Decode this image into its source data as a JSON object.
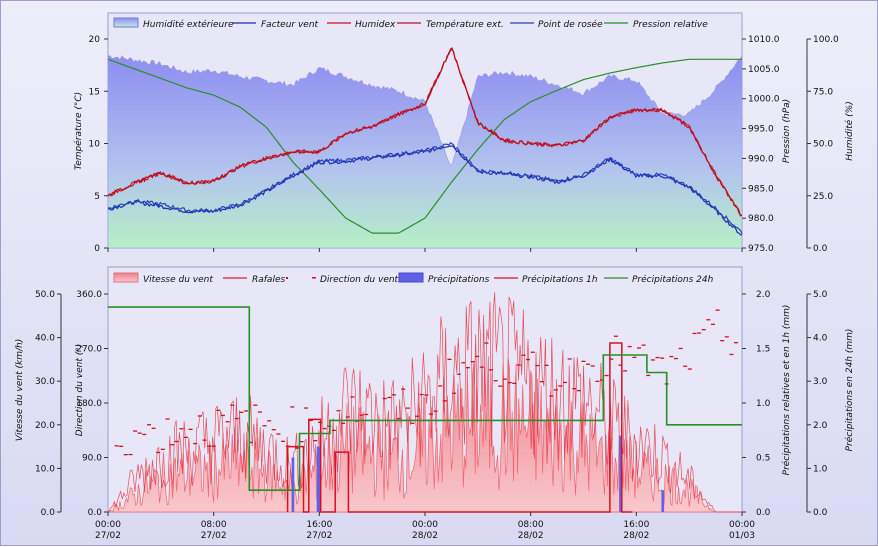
{
  "colors": {
    "humidity": "#8f8ff0",
    "humidity_bottom": "#b6f0c6",
    "windchill": "#1a2fb0",
    "humidex": "#cc1020",
    "temperature": "#b81020",
    "dewpoint": "#2a3fb8",
    "pressure": "#2a8e2a",
    "wind": "#f28c94",
    "gust": "#e01828",
    "direction": "#d01020",
    "rain": "#6060e8",
    "rain1h": "#d81020",
    "rain24h": "#2a8e2a"
  },
  "chart_data": [
    {
      "type": "line",
      "legend": [
        "Humidité extérieure",
        "Facteur vent",
        "Humidex",
        "Température ext.",
        "Point de rosée",
        "Pression relative"
      ],
      "ylabel_left": "Température (°C)",
      "ylabel_right1": "Pression (hPa)",
      "ylabel_right2": "Humidité (%)",
      "ylim_left": [
        0,
        20
      ],
      "ylim_right1": [
        975,
        1010
      ],
      "ylim_right2": [
        0,
        100
      ],
      "yticks_left": [
        "0",
        "5",
        "10",
        "15",
        "20"
      ],
      "yticks_right1": [
        "975.0",
        "980.0",
        "985.0",
        "990.0",
        "995.0",
        "1000.0",
        "1005.0",
        "1010.0"
      ],
      "yticks_right2": [
        "0.0",
        "25.0",
        "50.0",
        "75.0",
        "100.0"
      ],
      "x_hours": [
        0,
        2,
        4,
        6,
        8,
        10,
        12,
        14,
        16,
        18,
        20,
        22,
        24,
        26,
        28,
        30,
        32,
        34,
        36,
        38,
        40,
        42,
        44,
        46,
        48
      ],
      "series": [
        {
          "name": "Humidité extérieure",
          "axis": "right2",
          "values": [
            92,
            90,
            88,
            84,
            85,
            82,
            80,
            78,
            86,
            82,
            78,
            75,
            70,
            38,
            82,
            84,
            82,
            78,
            74,
            82,
            80,
            64,
            64,
            76,
            92
          ]
        },
        {
          "name": "Température ext.",
          "axis": "left",
          "values": [
            5,
            6.2,
            7.2,
            6.2,
            6.4,
            7.8,
            8.6,
            9.2,
            9.2,
            11,
            11.6,
            12.8,
            13.8,
            19.2,
            12,
            10.3,
            10,
            9.8,
            10.3,
            12.5,
            13.2,
            13.2,
            11.6,
            7,
            3
          ]
        },
        {
          "name": "Humidex",
          "axis": "left",
          "values": [
            5,
            6.2,
            7.2,
            6.2,
            6.4,
            7.8,
            8.6,
            9.2,
            9.2,
            11,
            11.6,
            12.8,
            13.8,
            19.2,
            12,
            10.3,
            10,
            9.8,
            10.3,
            12.5,
            13.2,
            13.2,
            11.6,
            7,
            3
          ]
        },
        {
          "name": "Point de rosée",
          "axis": "left",
          "values": [
            3.8,
            4.5,
            4.2,
            3.6,
            3.6,
            4.2,
            5.5,
            7,
            8.3,
            8.4,
            8.7,
            9,
            9.3,
            10,
            7.4,
            7.2,
            6.9,
            6.4,
            7,
            8.6,
            7,
            7,
            5.9,
            3.8,
            1.5
          ]
        },
        {
          "name": "Facteur vent",
          "axis": "left",
          "values": [
            3.7,
            4.4,
            4,
            3.5,
            3.5,
            4.1,
            5.4,
            6.9,
            8.2,
            8.3,
            8.6,
            8.9,
            9.2,
            9.9,
            7.3,
            7.1,
            6.8,
            6.3,
            6.9,
            8.5,
            6.9,
            6.9,
            5.8,
            3.6,
            1.2
          ]
        },
        {
          "name": "Pression relative",
          "axis": "right1",
          "values": [
            1006.6,
            1005,
            1003.4,
            1001.8,
            1000.6,
            998.6,
            995.2,
            989.4,
            984.8,
            980,
            977.5,
            977.5,
            980,
            986,
            991.5,
            996.5,
            999.5,
            1001.4,
            1003.2,
            1004.3,
            1005.2,
            1006,
            1006.6,
            1006.6,
            1006.6
          ]
        }
      ]
    },
    {
      "type": "line",
      "legend": [
        "Vitesse du vent",
        "Rafales",
        "Direction du vent",
        "Précipitations",
        "Précipitations 1h",
        "Précipitations 24h"
      ],
      "ylabel_left1": "Vitesse du vent (km/h)",
      "ylabel_left2": "Direction du vent (°)",
      "ylabel_right1": "Précipitations relatives et en 1h (mm)",
      "ylabel_right2": "Précipitations en 24h (mm)",
      "ylim_left1": [
        0,
        50
      ],
      "ylim_left2": [
        0,
        360
      ],
      "ylim_right1": [
        0,
        2
      ],
      "ylim_right2": [
        0,
        5
      ],
      "yticks_left1": [
        "0.0",
        "10.0",
        "20.0",
        "30.0",
        "40.0",
        "50.0"
      ],
      "yticks_left2": [
        "0.0",
        "90.0",
        "180.0",
        "270.0",
        "360.0"
      ],
      "yticks_right1": [
        "0.0",
        "0.5",
        "1.0",
        "1.5",
        "2.0"
      ],
      "yticks_right2": [
        "0.0",
        "1.0",
        "2.0",
        "3.0",
        "4.0",
        "5.0"
      ],
      "x_hours": [
        0,
        2,
        4,
        6,
        8,
        10,
        12,
        14,
        16,
        18,
        20,
        22,
        24,
        26,
        28,
        30,
        32,
        34,
        36,
        38,
        40,
        42,
        44,
        46,
        48
      ],
      "series": [
        {
          "name": "Vitesse du vent",
          "axis": "left1",
          "values": [
            0,
            4,
            8,
            9,
            10,
            12,
            9,
            6,
            10,
            15,
            14,
            13,
            16,
            20,
            21,
            22,
            20,
            18,
            16,
            12,
            10,
            8,
            5,
            0,
            0
          ]
        },
        {
          "name": "Rafales",
          "axis": "left1",
          "values": [
            0,
            8,
            14,
            16,
            18,
            20,
            16,
            12,
            18,
            26,
            24,
            22,
            28,
            34,
            36,
            35,
            32,
            30,
            28,
            22,
            18,
            14,
            8,
            0,
            0
          ]
        },
        {
          "name": "Direction du vent",
          "axis": "left2",
          "values": [
            120,
            130,
            130,
            140,
            140,
            150,
            145,
            140,
            150,
            170,
            165,
            170,
            175,
            230,
            250,
            240,
            230,
            220,
            240,
            260,
            250,
            230,
            260,
            300,
            280
          ]
        },
        {
          "name": "Précipitations 24h",
          "axis": "right2",
          "step_x": [
            0,
            10.7,
            10.7,
            14.5,
            14.5,
            16.8,
            16.8,
            26,
            26,
            37.5,
            37.5,
            39,
            39,
            40.8,
            40.8,
            42.3,
            42.3,
            48
          ],
          "step_y": [
            4.7,
            4.7,
            0.5,
            0.5,
            1.8,
            1.8,
            2.1,
            2.1,
            2.1,
            2.1,
            3.6,
            3.6,
            3.6,
            3.6,
            3.2,
            3.2,
            2,
            2
          ]
        }
      ]
    }
  ],
  "x_axis": {
    "times": [
      "00:00",
      "08:00",
      "16:00",
      "00:00",
      "08:00",
      "16:00",
      "00:00"
    ],
    "dates": [
      "27/02",
      "27/02",
      "27/02",
      "28/02",
      "28/02",
      "28/02",
      "01/03"
    ]
  }
}
